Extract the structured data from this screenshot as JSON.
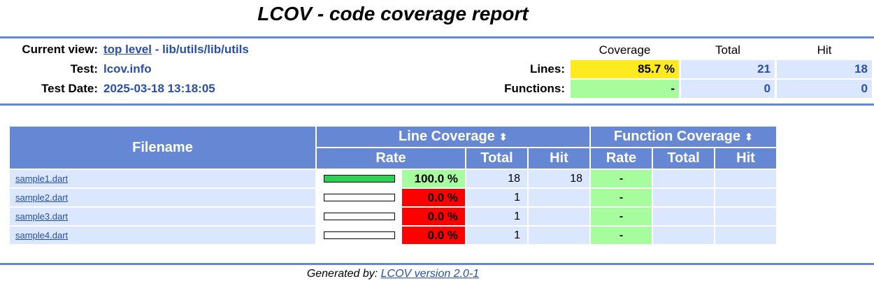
{
  "title": "LCOV - code coverage report",
  "header": {
    "current_view_label": "Current view:",
    "current_view_link": "top level",
    "current_view_path": " - lib/utils/lib/utils",
    "test_label": "Test:",
    "test_value": "lcov.info",
    "test_date_label": "Test Date:",
    "test_date_value": "2025-03-18 13:18:05"
  },
  "summary": {
    "col_coverage": "Coverage",
    "col_total": "Total",
    "col_hit": "Hit",
    "lines_label": "Lines:",
    "lines_coverage": "85.7 %",
    "lines_total": "21",
    "lines_hit": "18",
    "functions_label": "Functions:",
    "functions_coverage": "-",
    "functions_total": "0",
    "functions_hit": "0",
    "colors": {
      "medium": "#ffea20",
      "high": "#a7fc9d",
      "low": "#ff0000",
      "header": "#6688d4",
      "cell": "#dae7fe"
    }
  },
  "table": {
    "filename_header": "Filename",
    "line_coverage_header": "Line Coverage",
    "function_coverage_header": "Function Coverage",
    "sort_icon": "⬍",
    "rate": "Rate",
    "total": "Total",
    "hit": "Hit",
    "rows": [
      {
        "name": "sample1.dart",
        "rate": "100.0 %",
        "fraction": 1.0,
        "total": "18",
        "hit": "18",
        "fn_rate": "-",
        "rate_color": "#a7fc9d"
      },
      {
        "name": "sample2.dart",
        "rate": "0.0 %",
        "fraction": 0.0,
        "total": "1",
        "hit": "",
        "fn_rate": "-",
        "rate_color": "#ff0000"
      },
      {
        "name": "sample3.dart",
        "rate": "0.0 %",
        "fraction": 0.0,
        "total": "1",
        "hit": "",
        "fn_rate": "-",
        "rate_color": "#ff0000"
      },
      {
        "name": "sample4.dart",
        "rate": "0.0 %",
        "fraction": 0.0,
        "total": "1",
        "hit": "",
        "fn_rate": "-",
        "rate_color": "#ff0000"
      }
    ]
  },
  "footer": {
    "generated_by": "Generated by: ",
    "link": "LCOV version 2.0-1"
  }
}
